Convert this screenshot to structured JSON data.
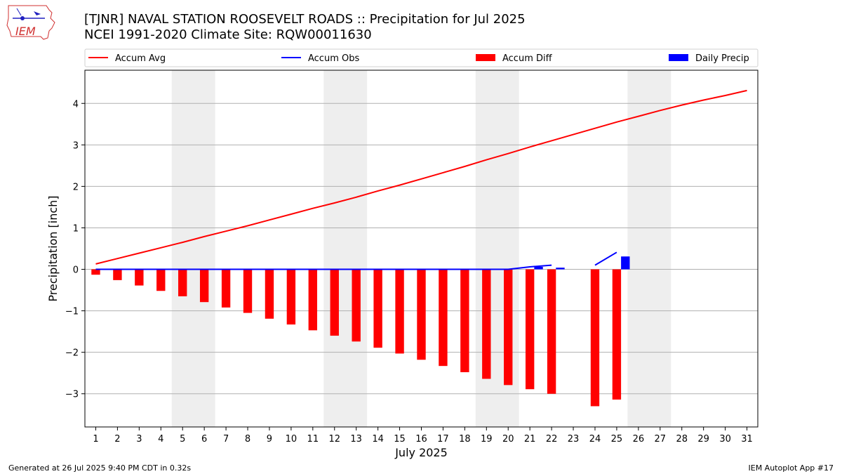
{
  "header": {
    "title_line1": "[TJNR] NAVAL STATION ROOSEVELT ROADS :: Precipitation for Jul 2025",
    "title_line2": "NCEI 1991-2020 Climate Site: RQW00011630",
    "logo_text": "IEM"
  },
  "footer": {
    "generated": "Generated at 26 Jul 2025 9:40 PM CDT in 0.32s",
    "app": "IEM Autoplot App #17"
  },
  "colors": {
    "avg": "#ff0000",
    "obs": "#0000ff",
    "diff": "#ff0000",
    "daily": "#0000ff",
    "weekend_band": "#eeeeee",
    "grid": "#b0b0b0"
  },
  "chart_data": {
    "type": "bar",
    "xlabel": "July 2025",
    "ylabel": "Precipitation [inch]",
    "ylim": [
      -3.8,
      4.8
    ],
    "xlim": [
      0.5,
      31.5
    ],
    "x": [
      1,
      2,
      3,
      4,
      5,
      6,
      7,
      8,
      9,
      10,
      11,
      12,
      13,
      14,
      15,
      16,
      17,
      18,
      19,
      20,
      21,
      22,
      23,
      24,
      25,
      26,
      27,
      28,
      29,
      30,
      31
    ],
    "x_ticks": [
      "1",
      "2",
      "3",
      "4",
      "5",
      "6",
      "7",
      "8",
      "9",
      "10",
      "11",
      "12",
      "13",
      "14",
      "15",
      "16",
      "17",
      "18",
      "19",
      "20",
      "21",
      "22",
      "23",
      "24",
      "25",
      "26",
      "27",
      "28",
      "29",
      "30",
      "31"
    ],
    "y_ticks": [
      -3,
      -2,
      -1,
      0,
      1,
      2,
      3,
      4
    ],
    "y_tick_labels": [
      "−3",
      "−2",
      "−1",
      "0",
      "1",
      "2",
      "3",
      "4"
    ],
    "grid": "y",
    "legend_position": "top",
    "weekend_bands": [
      [
        4.5,
        6.5
      ],
      [
        11.5,
        13.5
      ],
      [
        18.5,
        20.5
      ],
      [
        25.5,
        27.5
      ]
    ],
    "series": [
      {
        "name": "Accum Avg",
        "kind": "line",
        "values": [
          0.13,
          0.26,
          0.39,
          0.52,
          0.65,
          0.79,
          0.92,
          1.05,
          1.19,
          1.33,
          1.47,
          1.6,
          1.74,
          1.89,
          2.03,
          2.18,
          2.33,
          2.48,
          2.64,
          2.79,
          2.95,
          3.1,
          3.25,
          3.4,
          3.55,
          3.69,
          3.83,
          3.96,
          4.08,
          4.19,
          4.31
        ]
      },
      {
        "name": "Accum Obs",
        "kind": "line",
        "values": [
          0,
          0,
          0,
          0,
          0,
          0,
          0,
          0,
          0,
          0,
          0,
          0,
          0,
          0,
          0,
          0,
          0,
          0,
          0,
          0,
          0.06,
          0.1,
          null,
          0.1,
          0.41,
          null,
          null,
          null,
          null,
          null,
          null
        ]
      },
      {
        "name": "Accum Diff",
        "kind": "bar",
        "values": [
          -0.13,
          -0.26,
          -0.39,
          -0.52,
          -0.65,
          -0.79,
          -0.92,
          -1.05,
          -1.19,
          -1.33,
          -1.47,
          -1.6,
          -1.74,
          -1.89,
          -2.03,
          -2.18,
          -2.33,
          -2.48,
          -2.64,
          -2.79,
          -2.89,
          -3.0,
          null,
          -3.3,
          -3.14,
          null,
          null,
          null,
          null,
          null,
          null
        ]
      },
      {
        "name": "Daily Precip",
        "kind": "bar",
        "values": [
          0,
          0,
          0,
          0,
          0,
          0,
          0,
          0,
          0,
          0,
          0,
          0,
          0,
          0,
          0,
          0,
          0,
          0,
          0,
          0,
          0.06,
          0.04,
          null,
          0,
          0.31,
          null,
          null,
          null,
          null,
          null,
          null
        ]
      }
    ]
  }
}
